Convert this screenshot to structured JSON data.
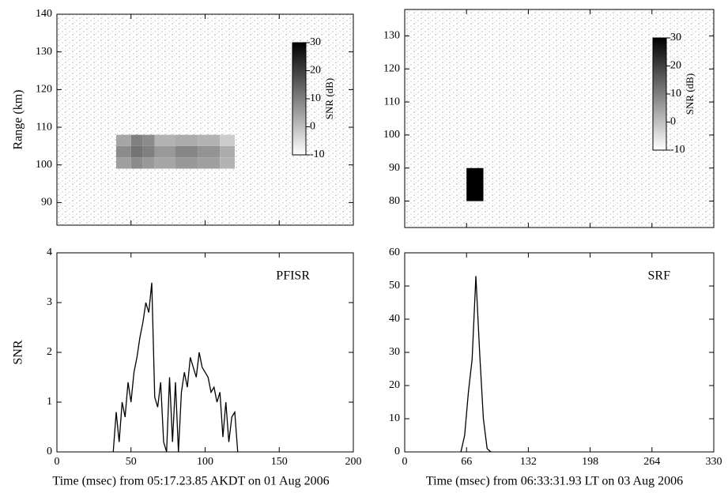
{
  "chart_data": [
    {
      "type": "heatmap",
      "xlim": [
        0,
        200
      ],
      "xticks": [
        0,
        50,
        100,
        150,
        200
      ],
      "ylim": [
        84,
        140
      ],
      "yticks": [
        90,
        100,
        110,
        120,
        130,
        140
      ],
      "ylabel": "Range (km)",
      "x_edges": [
        40,
        50,
        58,
        66,
        80,
        95,
        110,
        120
      ],
      "y_edges": [
        99,
        102,
        105,
        108
      ],
      "z": [
        [
          5,
          8,
          6,
          4,
          6,
          5,
          2
        ],
        [
          8,
          12,
          10,
          6,
          9,
          7,
          3
        ],
        [
          4,
          10,
          8,
          2,
          3,
          2,
          -2
        ]
      ],
      "colorbar": {
        "label": "SNR (dB)",
        "lim": [
          -10,
          30
        ],
        "ticks": [
          -10,
          0,
          10,
          20,
          30
        ]
      }
    },
    {
      "type": "heatmap",
      "xlim": [
        0,
        330
      ],
      "xticks": [
        0,
        66,
        132,
        198,
        264,
        330
      ],
      "ylim": [
        72,
        138
      ],
      "yticks": [
        80,
        90,
        100,
        110,
        120,
        130
      ],
      "x_edges": [
        66,
        84
      ],
      "y_edges": [
        80,
        90
      ],
      "z": [
        [
          30
        ]
      ],
      "colorbar": {
        "label": "SNR (dB)",
        "lim": [
          -10,
          30
        ],
        "ticks": [
          -10,
          0,
          10,
          20,
          30
        ]
      }
    },
    {
      "type": "line",
      "xlim": [
        0,
        200
      ],
      "xticks": [
        0,
        50,
        100,
        150,
        200
      ],
      "ylim": [
        0,
        4
      ],
      "yticks": [
        0,
        1,
        2,
        3,
        4
      ],
      "ylabel": "SNR",
      "annotation": "PFISR",
      "xlabel": "Time (msec) from 05:17.23.85 AKDT on 01 Aug 2006",
      "color": "#000000",
      "x": [
        38,
        40,
        42,
        44,
        46,
        48,
        50,
        52,
        54,
        56,
        58,
        60,
        62,
        64,
        66,
        68,
        70,
        72,
        74,
        76,
        78,
        80,
        82,
        84,
        86,
        88,
        90,
        92,
        94,
        96,
        98,
        100,
        102,
        104,
        106,
        108,
        110,
        112,
        114,
        116,
        118,
        120,
        122
      ],
      "values": [
        0,
        0.8,
        0.2,
        1.0,
        0.7,
        1.4,
        1.0,
        1.6,
        1.9,
        2.3,
        2.6,
        3.0,
        2.8,
        3.4,
        1.1,
        0.9,
        1.4,
        0.2,
        0,
        1.5,
        0.2,
        1.4,
        0,
        1.2,
        1.6,
        1.3,
        1.9,
        1.7,
        1.5,
        2.0,
        1.7,
        1.6,
        1.5,
        1.2,
        1.3,
        1.0,
        1.2,
        0.3,
        1.0,
        0.2,
        0.7,
        0.8,
        0
      ]
    },
    {
      "type": "line",
      "xlim": [
        0,
        330
      ],
      "xticks": [
        0,
        66,
        132,
        198,
        264,
        330
      ],
      "ylim": [
        0,
        60
      ],
      "yticks": [
        0,
        10,
        20,
        30,
        40,
        50,
        60
      ],
      "annotation": "SRF",
      "xlabel": "Time (msec) from 06:33:31.93 LT on 03 Aug 2006",
      "color": "#000000",
      "x": [
        60,
        64,
        68,
        72,
        76,
        80,
        84,
        88,
        92
      ],
      "values": [
        0,
        5,
        18,
        28,
        53,
        30,
        10,
        1,
        0
      ]
    }
  ]
}
